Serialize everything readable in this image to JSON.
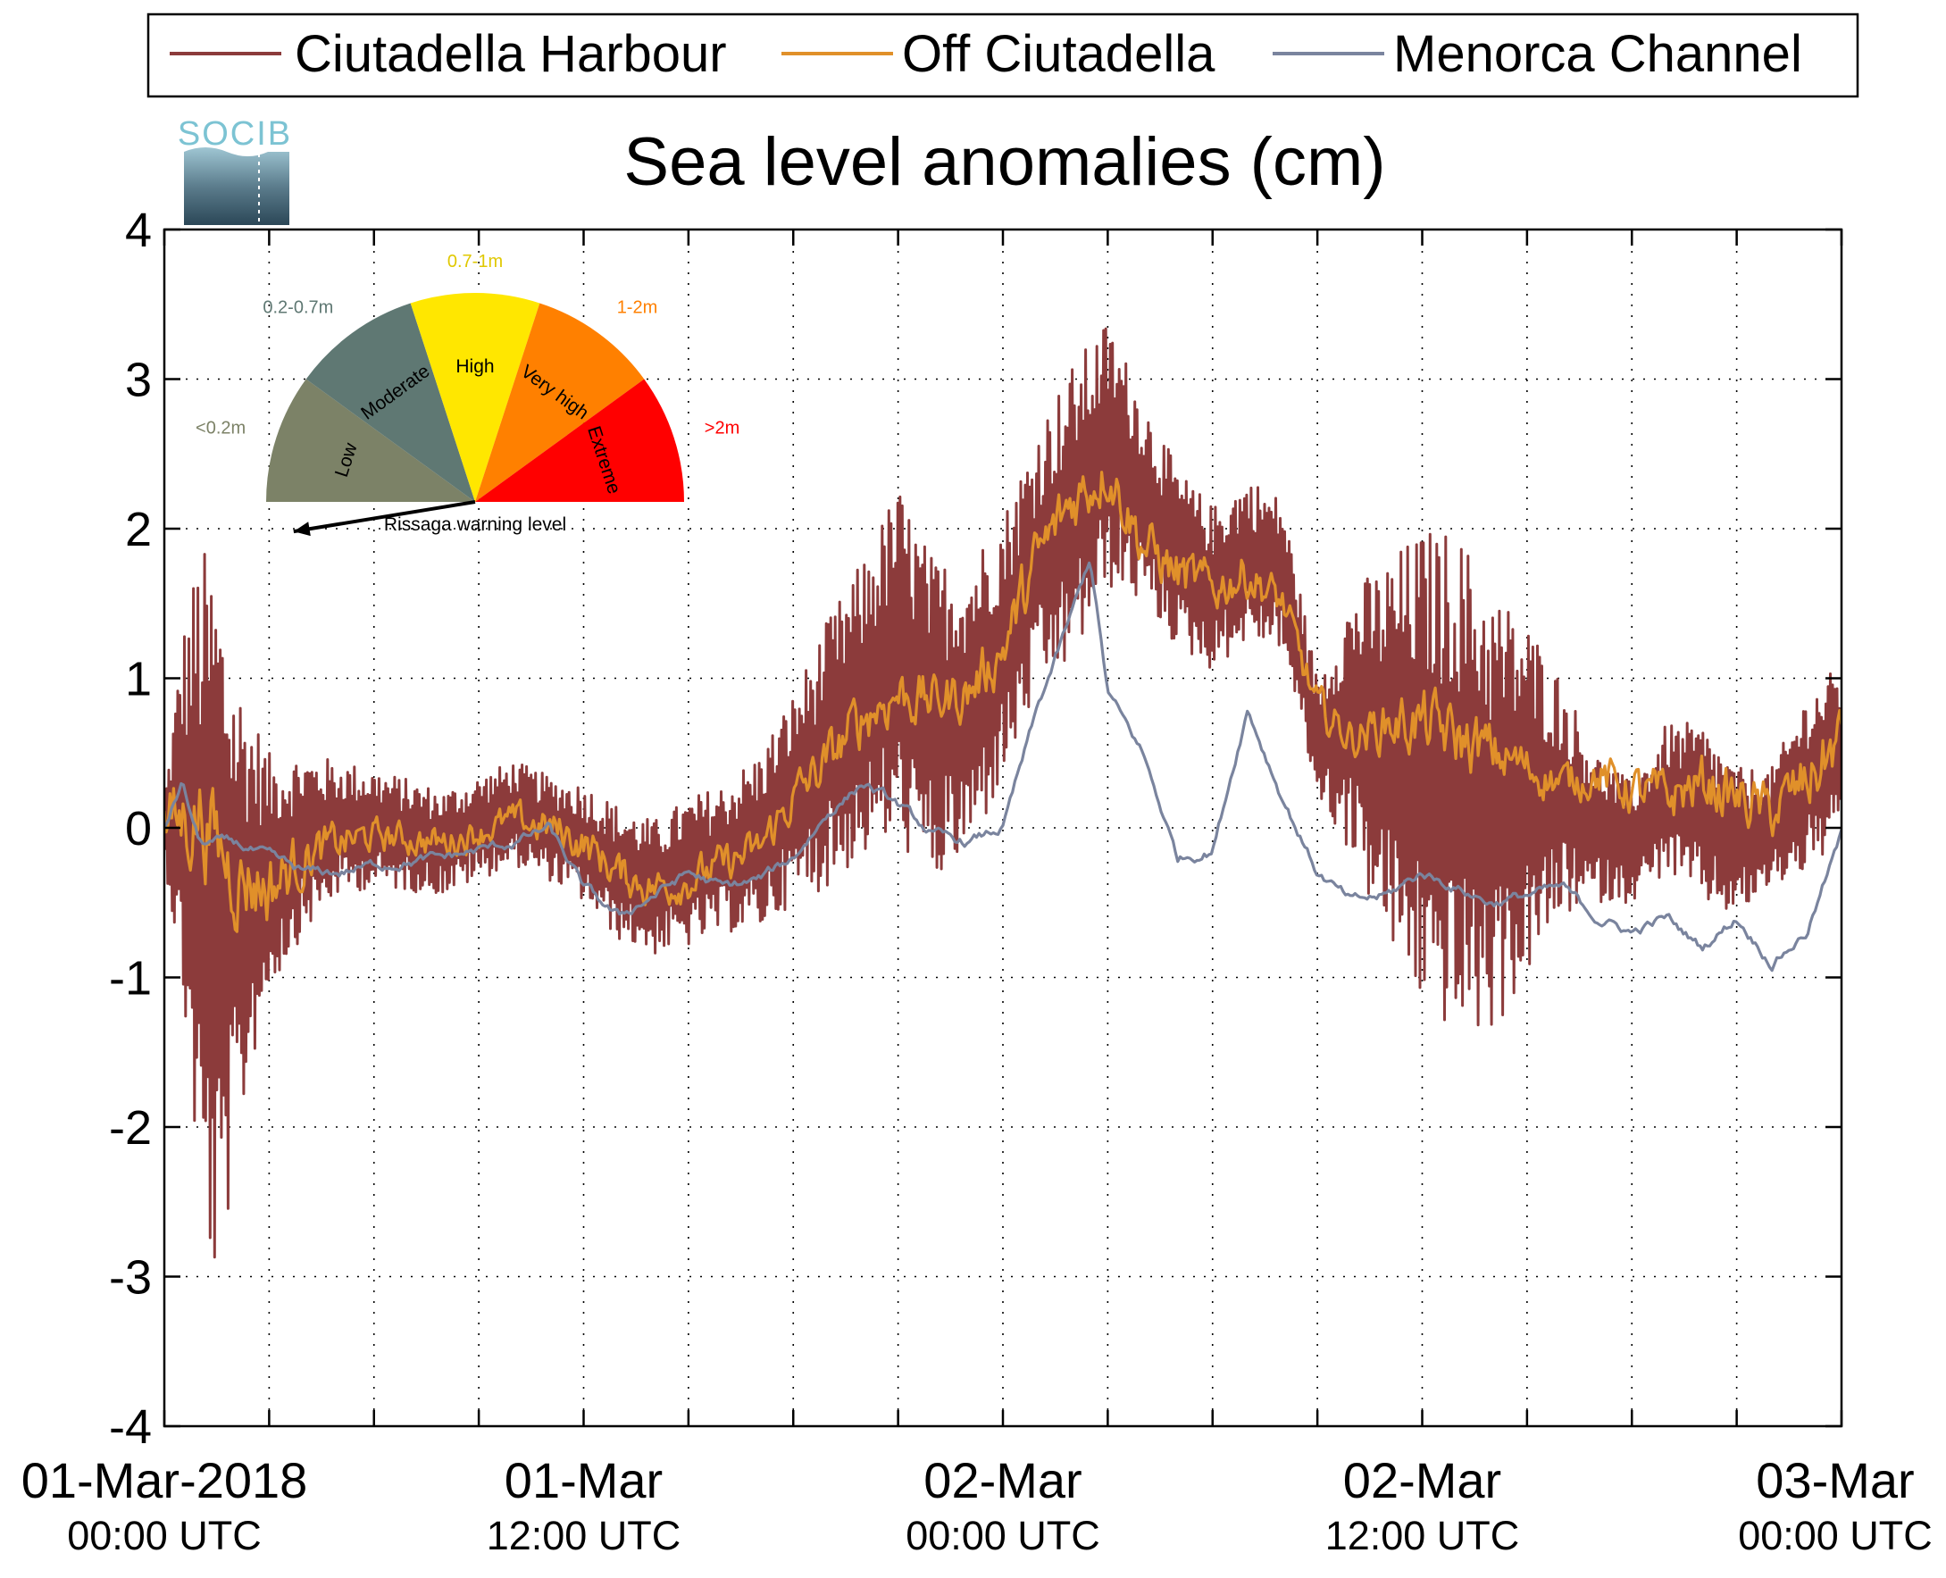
{
  "chart_data": {
    "type": "line",
    "title": "Sea level anomalies (cm)",
    "xlabel": "",
    "ylabel": "",
    "ylim": [
      -4,
      4
    ],
    "yticks": [
      -4,
      -3,
      -2,
      -1,
      0,
      1,
      2,
      3,
      4
    ],
    "ytick_labels": [
      "-4",
      "-3",
      "-2",
      "-1",
      "0",
      "1",
      "2",
      "3",
      "4"
    ],
    "x_unit": "hours since 01-Mar-2018 00:00 UTC",
    "xlim": [
      0,
      48
    ],
    "xtick_hours": [
      0,
      3,
      6,
      9,
      12,
      15,
      18,
      21,
      24,
      27,
      30,
      33,
      36,
      39,
      42,
      45,
      48
    ],
    "xtick_labels": [
      {
        "hour": 0,
        "line1": "01-Mar-2018",
        "line2": "00:00 UTC"
      },
      {
        "hour": 12,
        "line1": "01-Mar",
        "line2": "12:00 UTC"
      },
      {
        "hour": 24,
        "line1": "02-Mar",
        "line2": "00:00 UTC"
      },
      {
        "hour": 36,
        "line1": "02-Mar",
        "line2": "12:00 UTC"
      },
      {
        "hour": 48,
        "line1": "03-Mar",
        "line2": "00:00 UTC"
      }
    ],
    "grid": true,
    "legend_position": "top",
    "series": [
      {
        "name": "Ciutadella Harbour",
        "color": "#8c3b3b",
        "kind": "oscillating",
        "x": [
          0,
          0.5,
          1,
          1.5,
          2,
          2.5,
          3,
          4,
          5,
          6,
          8,
          10,
          11,
          12,
          13,
          14,
          15,
          16,
          17,
          18,
          19,
          20,
          21,
          22,
          23,
          24,
          25,
          26,
          27,
          28,
          29,
          30,
          31,
          32,
          33,
          34,
          35,
          36,
          37,
          38,
          39,
          40,
          41,
          42,
          43,
          44,
          45,
          46,
          47,
          48
        ],
        "center": [
          0.0,
          0.1,
          -0.3,
          -0.7,
          -0.6,
          -0.4,
          -0.3,
          -0.1,
          0.0,
          0.0,
          -0.1,
          0.1,
          0.0,
          -0.1,
          -0.3,
          -0.4,
          -0.3,
          -0.2,
          -0.1,
          0.2,
          0.5,
          0.8,
          1.1,
          0.7,
          0.8,
          1.2,
          1.8,
          2.1,
          2.5,
          2.2,
          1.8,
          1.6,
          1.8,
          1.7,
          0.6,
          0.7,
          0.5,
          0.4,
          0.3,
          0.1,
          0.2,
          0.2,
          0.0,
          -0.1,
          0.2,
          0.1,
          -0.1,
          0.0,
          0.3,
          0.5
        ],
        "amplitude": [
          0.2,
          1.2,
          2.2,
          2.5,
          1.7,
          1.2,
          0.8,
          0.6,
          0.45,
          0.4,
          0.35,
          0.35,
          0.35,
          0.4,
          0.45,
          0.45,
          0.5,
          0.5,
          0.6,
          0.7,
          0.9,
          1.0,
          1.2,
          1.1,
          1.0,
          0.9,
          0.9,
          1.0,
          0.9,
          0.7,
          0.6,
          0.55,
          0.55,
          0.5,
          0.4,
          0.9,
          1.3,
          1.6,
          1.7,
          1.5,
          1.2,
          0.8,
          0.5,
          0.4,
          0.5,
          0.6,
          0.5,
          0.4,
          0.6,
          0.6
        ]
      },
      {
        "name": "Off Ciutadella",
        "color": "#e0902a",
        "kind": "noisy",
        "x": [
          0,
          1,
          2,
          3,
          4,
          5,
          6,
          8,
          10,
          11,
          12,
          13,
          14,
          15,
          16,
          17,
          18,
          19,
          20,
          21,
          22,
          23,
          24,
          25,
          26,
          27,
          28,
          29,
          30,
          31,
          32,
          33,
          34,
          35,
          36,
          37,
          38,
          39,
          40,
          41,
          42,
          43,
          44,
          45,
          46,
          47,
          48
        ],
        "y": [
          0.0,
          0.1,
          -0.3,
          -0.4,
          -0.2,
          -0.1,
          -0.05,
          -0.1,
          0.05,
          0.0,
          -0.1,
          -0.3,
          -0.4,
          -0.35,
          -0.25,
          -0.15,
          0.2,
          0.45,
          0.75,
          0.9,
          0.85,
          0.9,
          1.2,
          1.8,
          2.2,
          2.4,
          1.9,
          1.7,
          1.6,
          1.7,
          1.5,
          0.8,
          0.6,
          0.7,
          0.7,
          0.6,
          0.5,
          0.4,
          0.3,
          0.35,
          0.25,
          0.2,
          0.3,
          0.2,
          0.1,
          0.3,
          0.6
        ],
        "noise": [
          0.3,
          0.4,
          0.35,
          0.3,
          0.2,
          0.15,
          0.12,
          0.12,
          0.12,
          0.15,
          0.15,
          0.15,
          0.15,
          0.15,
          0.15,
          0.15,
          0.18,
          0.2,
          0.22,
          0.22,
          0.2,
          0.2,
          0.22,
          0.25,
          0.25,
          0.22,
          0.2,
          0.2,
          0.18,
          0.18,
          0.15,
          0.15,
          0.15,
          0.2,
          0.25,
          0.25,
          0.22,
          0.18,
          0.15,
          0.15,
          0.18,
          0.2,
          0.2,
          0.2,
          0.2,
          0.25,
          0.25
        ]
      },
      {
        "name": "Menorca Channel",
        "color": "#7a849e",
        "kind": "smooth",
        "x": [
          0,
          0.5,
          1,
          2,
          3,
          4,
          5,
          6,
          8,
          10,
          11,
          12,
          13,
          14,
          15,
          16,
          17,
          18,
          19,
          20,
          21,
          22,
          23,
          24,
          25,
          26,
          26.5,
          27,
          28,
          29,
          30,
          31,
          32,
          33,
          34,
          35,
          36,
          37,
          38,
          39,
          40,
          41,
          42,
          43,
          44,
          45,
          46,
          47,
          48
        ],
        "y": [
          0.0,
          0.3,
          -0.1,
          -0.1,
          -0.2,
          -0.3,
          -0.3,
          -0.25,
          -0.2,
          -0.1,
          0.0,
          -0.4,
          -0.6,
          -0.45,
          -0.3,
          -0.4,
          -0.35,
          -0.2,
          0.1,
          0.3,
          0.15,
          -0.05,
          -0.1,
          0.0,
          0.8,
          1.45,
          1.8,
          0.9,
          0.5,
          -0.2,
          -0.15,
          0.8,
          0.2,
          -0.3,
          -0.5,
          -0.45,
          -0.3,
          -0.4,
          -0.5,
          -0.45,
          -0.4,
          -0.6,
          -0.7,
          -0.6,
          -0.8,
          -0.6,
          -0.9,
          -0.7,
          -0.05
        ]
      }
    ],
    "inset": {
      "title": "Rissaga warning level",
      "segments": [
        {
          "label": "Low",
          "range": "<0.2m",
          "color": "#7c8267",
          "text_color": "#7c8267"
        },
        {
          "label": "Moderate",
          "range": "0.2-0.7m",
          "color": "#5f7873",
          "text_color": "#5f7873"
        },
        {
          "label": "High",
          "range": "0.7-1m",
          "color": "#ffe700",
          "text_color": "#e0c800"
        },
        {
          "label": "Very high",
          "range": "1-2m",
          "color": "#ff8000",
          "text_color": "#ff8000"
        },
        {
          "label": "Extreme",
          "range": ">2m",
          "color": "#ff0000",
          "text_color": "#ff0000"
        }
      ],
      "current_level": "Low"
    },
    "logo_text": "SOCIB"
  }
}
